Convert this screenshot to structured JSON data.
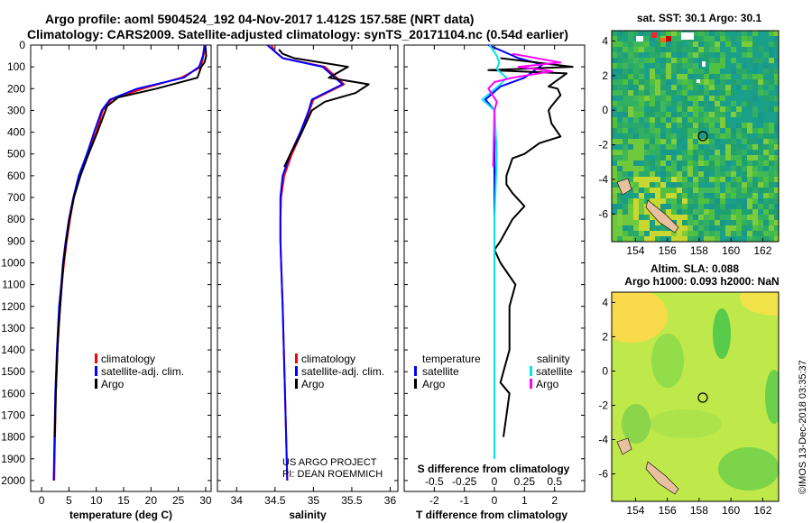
{
  "header": {
    "line1": "Argo profile: aoml 5904524_192 04-Nov-2017 1.412S 157.58E (NRT data)",
    "line2": "Climatology: CARS2009. Satellite-adjusted climatology: synTS_20171104.nc (0.54d earlier)"
  },
  "depth_ticks": [
    "0",
    "100",
    "200",
    "300",
    "400",
    "500",
    "600",
    "700",
    "800",
    "900",
    "1000",
    "1100",
    "1200",
    "1300",
    "1400",
    "1500",
    "1600",
    "1700",
    "1800",
    "1900",
    "2000"
  ],
  "colors": {
    "climatology": "#ff0000",
    "satellite": "#0000ff",
    "argo": "#000000",
    "sat_salinity": "#00e5ee",
    "argo_salinity_diff": "#ff00ff"
  },
  "chart_data": [
    {
      "type": "line",
      "xlabel": "temperature (deg C)",
      "xlim": [
        -2,
        31
      ],
      "ylim": [
        0,
        2050
      ],
      "xticks": [
        "0",
        "5",
        "10",
        "15",
        "20",
        "25",
        "30"
      ],
      "legend_position": "lower-center",
      "series": [
        {
          "name": "climatology",
          "color": "#ff0000",
          "x": [
            30.0,
            29.6,
            29.2,
            25.5,
            18.5,
            12.8,
            11.2,
            10.0,
            8.3,
            7.0,
            5.9,
            5.2,
            4.6,
            4.1,
            3.7,
            3.4,
            2.9,
            2.6,
            2.3
          ],
          "y": [
            0,
            50,
            100,
            150,
            200,
            250,
            300,
            400,
            500,
            600,
            700,
            800,
            900,
            1000,
            1100,
            1200,
            1400,
            1600,
            2000
          ]
        },
        {
          "name": "satellite-adj. clim.",
          "color": "#0000ff",
          "x": [
            29.8,
            29.5,
            28.8,
            26.0,
            17.5,
            12.5,
            11.0,
            9.6,
            8.3,
            6.8,
            5.8,
            5.0,
            4.4,
            3.9,
            3.6,
            3.2,
            2.8,
            2.5,
            2.2
          ],
          "y": [
            0,
            50,
            100,
            150,
            200,
            250,
            300,
            400,
            500,
            600,
            700,
            800,
            900,
            1000,
            1100,
            1200,
            1400,
            1600,
            2000
          ]
        },
        {
          "name": "Argo",
          "color": "#000000",
          "x": [
            30.0,
            30.1,
            29.8,
            29.2,
            28.5,
            21.0,
            14.0,
            12.0,
            10.2,
            8.6,
            7.1,
            5.9,
            5.1,
            4.5,
            4.0,
            3.7,
            3.4,
            3.1,
            2.9,
            2.6,
            2.4
          ],
          "y": [
            10,
            50,
            80,
            100,
            150,
            200,
            240,
            280,
            400,
            500,
            600,
            700,
            800,
            900,
            1000,
            1100,
            1200,
            1300,
            1400,
            1600,
            1800
          ]
        }
      ],
      "annotations": []
    },
    {
      "type": "line",
      "xlabel": "salinity",
      "xlim": [
        33.75,
        36.1
      ],
      "ylim": [
        0,
        2050
      ],
      "xticks": [
        "34",
        "34.5",
        "35",
        "35.5",
        "36"
      ],
      "legend_position": "lower-right",
      "series": [
        {
          "name": "climatology",
          "color": "#ff0000",
          "x": [
            34.45,
            34.5,
            34.6,
            35.15,
            35.4,
            35.0,
            34.95,
            34.85,
            34.72,
            34.62,
            34.58,
            34.57,
            34.57,
            34.58,
            34.6,
            34.63,
            34.66
          ],
          "y": [
            0,
            30,
            60,
            100,
            180,
            250,
            300,
            400,
            500,
            600,
            700,
            800,
            900,
            1000,
            1200,
            1600,
            2000
          ]
        },
        {
          "name": "satellite-adj. clim.",
          "color": "#0000ff",
          "x": [
            34.4,
            34.5,
            34.6,
            35.12,
            35.38,
            34.98,
            34.94,
            34.83,
            34.7,
            34.6,
            34.57,
            34.57,
            34.57,
            34.58,
            34.6,
            34.63,
            34.66
          ],
          "y": [
            0,
            30,
            60,
            100,
            180,
            250,
            300,
            400,
            500,
            600,
            700,
            800,
            900,
            1000,
            1200,
            1600,
            2000
          ]
        },
        {
          "name": "Argo",
          "color": "#000000",
          "x": [
            34.55,
            34.6,
            34.75,
            35.45,
            35.2,
            35.72,
            35.55,
            35.15,
            34.98,
            34.85,
            34.7,
            34.62
          ],
          "y": [
            20,
            40,
            60,
            100,
            150,
            180,
            220,
            260,
            300,
            400,
            500,
            560
          ]
        }
      ],
      "annotations": [
        "US ARGO PROJECT",
        "PI: DEAN ROEMMICH"
      ]
    },
    {
      "type": "line",
      "xlabel": "T difference from climatology",
      "x2label": "S difference from climatology",
      "xlim": [
        -3,
        3
      ],
      "x2lim": [
        -0.75,
        0.75
      ],
      "ylim": [
        0,
        2050
      ],
      "xticks": [
        "-2",
        "-1",
        "0",
        "1",
        "2"
      ],
      "x2ticks": [
        "-0.5",
        "-0.25",
        "0",
        "0.25",
        "0.5"
      ],
      "legend_position": "lower",
      "legend_groups": [
        {
          "title": "temperature",
          "entries": [
            {
              "name": "satellite",
              "color": "#0000ff"
            },
            {
              "name": "Argo",
              "color": "#000000"
            }
          ]
        },
        {
          "title": "salinity",
          "entries": [
            {
              "name": "satellite",
              "color": "#00e5ee"
            },
            {
              "name": "Argo",
              "color": "#ff00ff"
            }
          ]
        }
      ],
      "series": [
        {
          "name": "temperature satellite",
          "color": "#0000ff",
          "x": [
            -0.2,
            0.3,
            0.8,
            1.6,
            1.0,
            0.2,
            -0.3,
            0.0,
            0.0,
            0.0,
            0.0,
            0.0
          ],
          "y": [
            0,
            30,
            60,
            90,
            150,
            190,
            250,
            300,
            500,
            800,
            1200,
            1900
          ]
        },
        {
          "name": "temperature Argo",
          "color": "#000000",
          "x": [
            0.2,
            2.6,
            -0.2,
            2.4,
            1.8,
            2.1,
            2.2,
            1.9,
            1.8,
            1.9,
            2.2,
            1.5,
            1.0,
            0.6,
            0.4,
            0.4,
            0.6,
            1.0,
            0.6,
            0.2,
            0.0,
            0.2,
            0.5,
            0.7,
            0.5,
            0.5,
            0.5,
            0.3,
            0.2,
            0.5,
            0.3
          ],
          "y": [
            60,
            100,
            115,
            130,
            190,
            200,
            230,
            280,
            300,
            360,
            420,
            450,
            500,
            520,
            600,
            640,
            680,
            740,
            800,
            900,
            940,
            1000,
            1060,
            1100,
            1200,
            1300,
            1400,
            1500,
            1550,
            1600,
            1800
          ]
        },
        {
          "name": "salinity satellite",
          "color": "#00e5ee",
          "x": [
            -0.04,
            0.02,
            0.04,
            0.02,
            0.1,
            0.05,
            -0.1,
            0.0,
            0.02,
            0.0,
            0.0,
            0.0
          ],
          "y": [
            0,
            50,
            80,
            110,
            150,
            180,
            250,
            300,
            500,
            800,
            1200,
            1900
          ]
        },
        {
          "name": "salinity Argo",
          "color": "#ff00ff",
          "x": [
            0.15,
            0.55,
            0.2,
            0.48,
            0.15,
            0.0,
            -0.05,
            0.02,
            0.0,
            -0.01
          ],
          "y": [
            40,
            80,
            100,
            120,
            150,
            170,
            200,
            260,
            300,
            560
          ]
        }
      ]
    }
  ],
  "maps": [
    {
      "title": "sat. SST: 30.1 Argo: 30.1",
      "xticks": [
        "154",
        "156",
        "158",
        "160",
        "162"
      ],
      "yticks": [
        "4",
        "2",
        "0",
        "-2",
        "-4",
        "-6"
      ]
    },
    {
      "title_line1": "Altim. SLA: 0.088",
      "title_line2": "Argo h1000: 0.093 h2000: NaN",
      "xticks": [
        "154",
        "156",
        "158",
        "160",
        "162"
      ],
      "yticks": [
        "4",
        "2",
        "0",
        "-2",
        "-4",
        "-6"
      ]
    }
  ],
  "credit": "©IMOS 13-Dec-2018 03:35:37"
}
